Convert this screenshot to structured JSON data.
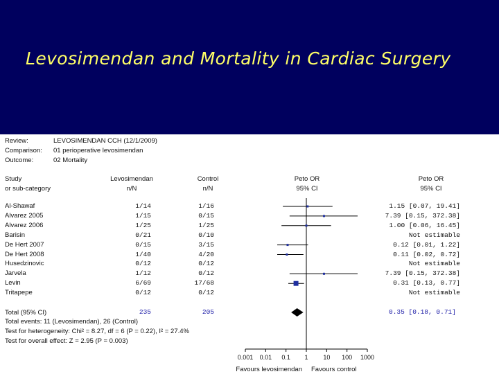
{
  "slide": {
    "title": "Levosimendan and Mortality in Cardiac Surgery"
  },
  "meta": {
    "review_label": "Review:",
    "review_value": "LEVOSIMENDAN CCH (12/1/2009)",
    "comparison_label": "Comparison:",
    "comparison_value": "01 perioperative levosimendan",
    "outcome_label": "Outcome:",
    "outcome_value": "02 Mortality"
  },
  "headers": {
    "study_line1": "Study",
    "study_line2": "or sub-category",
    "levo_line1": "Levosimendan",
    "levo_line2": "n/N",
    "control_line1": "Control",
    "control_line2": "n/N",
    "peto_line1": "Peto OR",
    "peto_line2": "95% CI",
    "petoR_line1": "Peto OR",
    "petoR_line2": "95% CI"
  },
  "chart_data": {
    "type": "forest",
    "scale": "log",
    "x_ticks": [
      "0.001",
      "0.01",
      "0.1",
      "1",
      "10",
      "100",
      "1000"
    ],
    "x_tick_values": [
      0.001,
      0.01,
      0.1,
      1,
      10,
      100,
      1000
    ],
    "xlim": [
      0.001,
      1000
    ],
    "x_label_left": "Favours levosimendan",
    "x_label_right": "Favours control",
    "studies": [
      {
        "name": "Al-Shawaf",
        "levo": "1/14",
        "control": "1/16",
        "ci_text": "1.15 [0.07, 19.41]",
        "or": 1.15,
        "lo": 0.07,
        "hi": 19.41,
        "estimable": true
      },
      {
        "name": "Alvarez 2005",
        "levo": "1/15",
        "control": "0/15",
        "ci_text": "7.39 [0.15, 372.38]",
        "or": 7.39,
        "lo": 0.15,
        "hi": 372.38,
        "estimable": true
      },
      {
        "name": "Alvarez 2006",
        "levo": "1/25",
        "control": "1/25",
        "ci_text": "1.00 [0.06, 16.45]",
        "or": 1.0,
        "lo": 0.06,
        "hi": 16.45,
        "estimable": true
      },
      {
        "name": "Barisin",
        "levo": "0/21",
        "control": "0/10",
        "ci_text": "Not estimable",
        "estimable": false
      },
      {
        "name": "De Hert 2007",
        "levo": "0/15",
        "control": "3/15",
        "ci_text": "0.12 [0.01, 1.22]",
        "or": 0.12,
        "lo": 0.01,
        "hi": 1.22,
        "estimable": true
      },
      {
        "name": "De Hert 2008",
        "levo": "1/40",
        "control": "4/20",
        "ci_text": "0.11 [0.02, 0.72]",
        "or": 0.11,
        "lo": 0.02,
        "hi": 0.72,
        "estimable": true
      },
      {
        "name": "Husedzinovic",
        "levo": "0/12",
        "control": "0/12",
        "ci_text": "Not estimable",
        "estimable": false
      },
      {
        "name": "Jarvela",
        "levo": "1/12",
        "control": "0/12",
        "ci_text": "7.39 [0.15, 372.38]",
        "or": 7.39,
        "lo": 0.15,
        "hi": 372.38,
        "estimable": true
      },
      {
        "name": "Levin",
        "levo": "6/69",
        "control": "17/68",
        "ci_text": "0.31 [0.13, 0.77]",
        "or": 0.31,
        "lo": 0.13,
        "hi": 0.77,
        "estimable": true,
        "large": true
      },
      {
        "name": "Tritapepe",
        "levo": "0/12",
        "control": "0/12",
        "ci_text": "Not estimable",
        "estimable": false
      }
    ],
    "total": {
      "name": "Total (95% CI)",
      "levo": "235",
      "control": "205",
      "ci_text": "0.35 [0.18, 0.71]",
      "or": 0.35,
      "lo": 0.18,
      "hi": 0.71
    },
    "footnotes": [
      "Total events: 11 (Levosimendan), 26 (Control)",
      "Test for heterogeneity: Chi² = 8.27, df = 6 (P = 0.22), I² = 27.4%",
      "Test for overall effect: Z = 2.95 (P = 0.003)"
    ]
  },
  "colors": {
    "title_band": "#00005e",
    "title_text": "#ffff66",
    "marker": "#1f2f9f",
    "diamond": "#000000"
  }
}
